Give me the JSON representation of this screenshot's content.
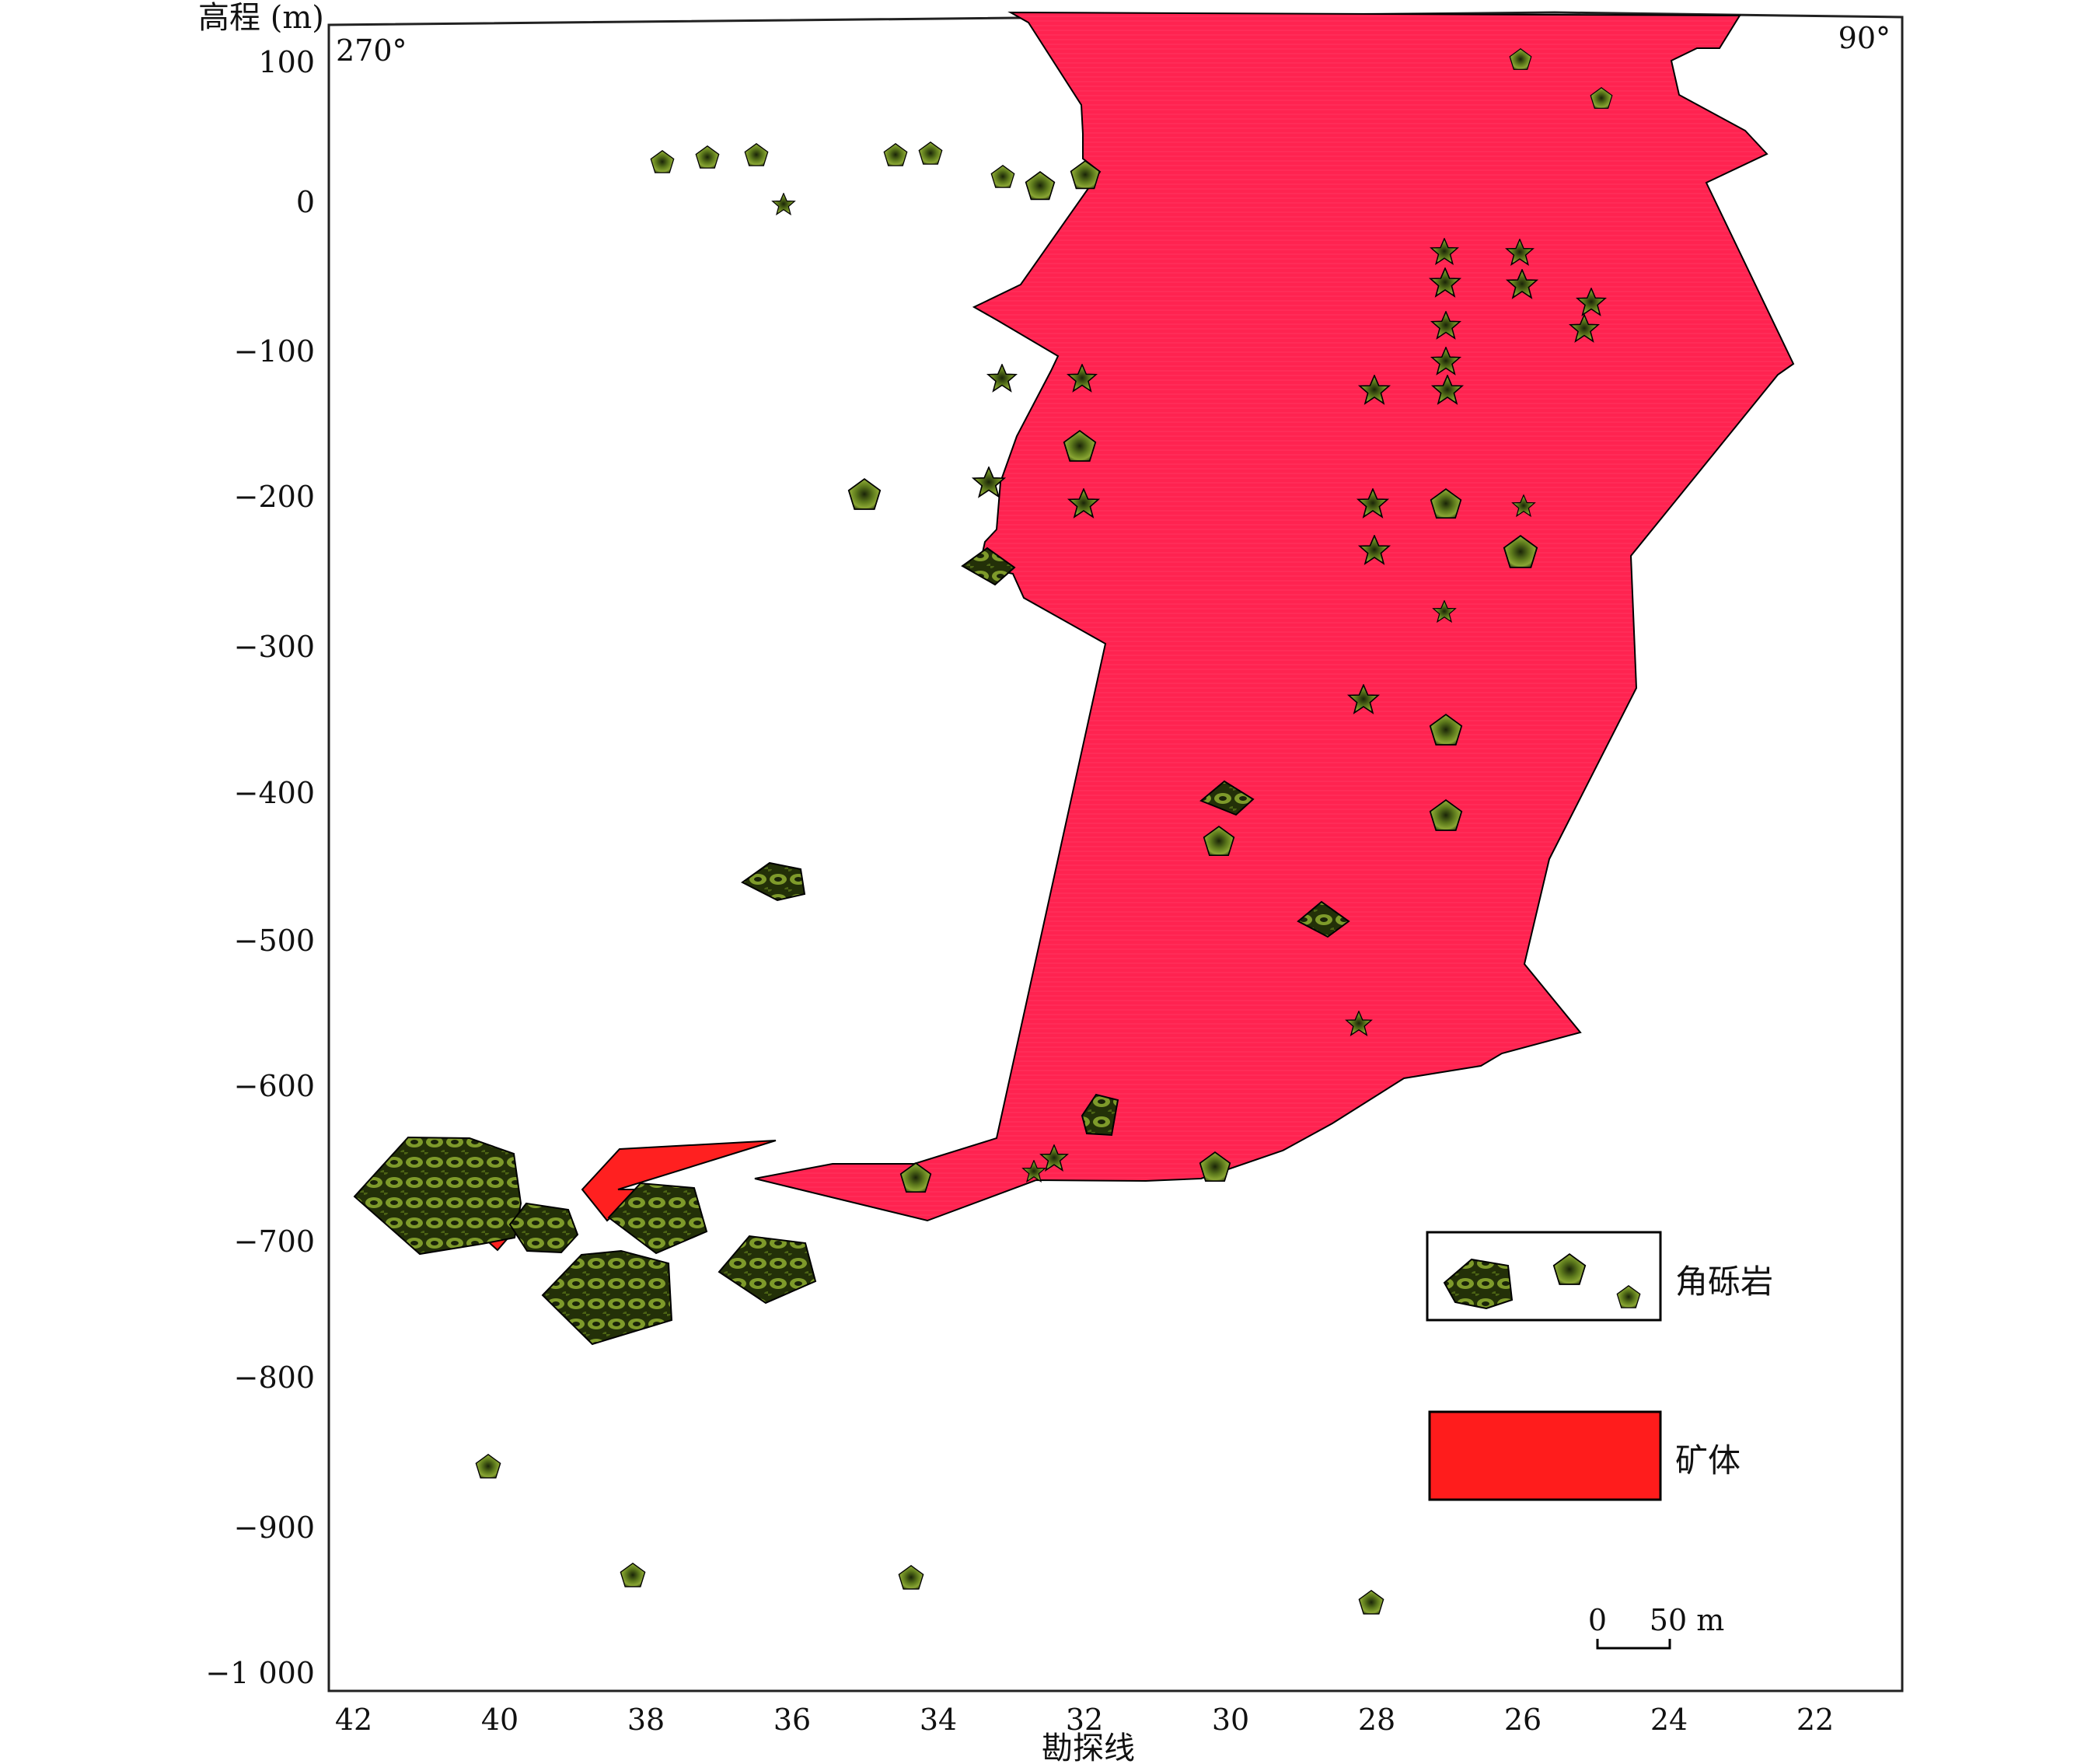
{
  "header": {
    "y_axis_title": "高程 (m)",
    "x_axis_title": "勘探线",
    "left_azimuth": "270°",
    "right_azimuth": "90°"
  },
  "axes": {
    "y_ticks": [
      "100",
      "0",
      "−100",
      "−200",
      "−300",
      "−400",
      "−500",
      "−600",
      "−700",
      "−800",
      "−900",
      "−1 000"
    ],
    "x_ticks": [
      "42",
      "40",
      "38",
      "36",
      "34",
      "32",
      "30",
      "28",
      "26",
      "24",
      "22"
    ]
  },
  "legend": {
    "breccia_label": "角砾岩",
    "orebody_label": "矿体"
  },
  "scale_bar": {
    "zero": "0",
    "length": "50 m"
  },
  "colors": {
    "orebody_fill": "#ff2350",
    "orebody_legend": "#ff1c1c",
    "small_orebody": "#ff2020",
    "breccia_dark": "#1a2408",
    "breccia_light": "#7e9a2a"
  }
}
